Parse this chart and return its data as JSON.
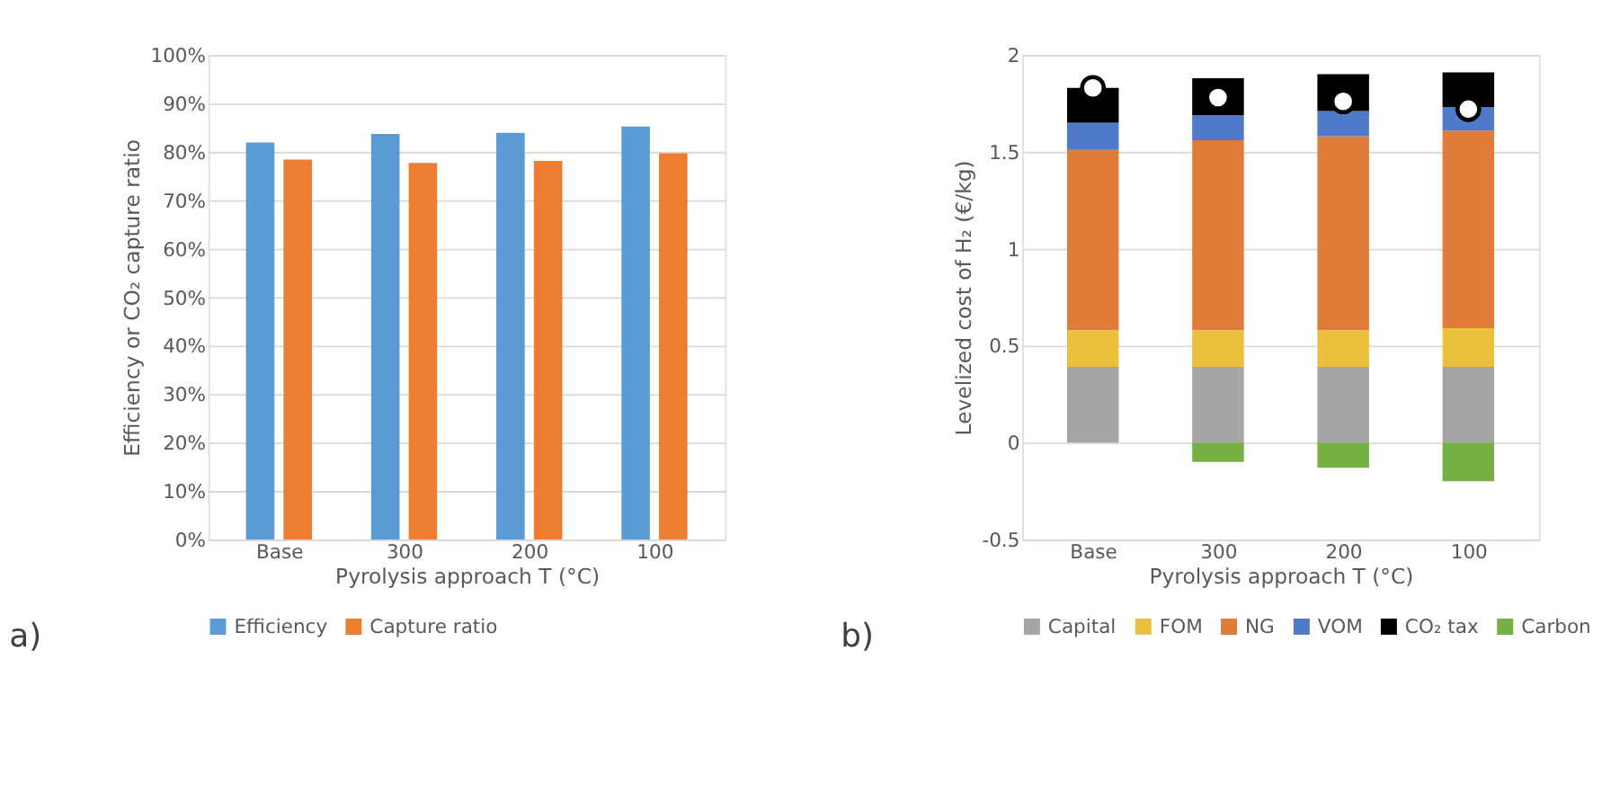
{
  "chart_data": [
    {
      "type": "bar",
      "ylabel": "Efficiency or CO₂ capture ratio",
      "xlabel": "Pyrolysis approach T (°C)",
      "categories": [
        "Base",
        "300",
        "200",
        "100"
      ],
      "series": [
        {
          "name": "Efficiency",
          "color": "#5b9bd5",
          "values": [
            81.9,
            83.7,
            83.9,
            85.2
          ]
        },
        {
          "name": "Capture ratio",
          "color": "#ed7d31",
          "values": [
            78.4,
            77.7,
            78.1,
            79.7
          ]
        }
      ],
      "ylim": [
        0,
        100
      ],
      "yticks": [
        {
          "value": 0,
          "label": "0%"
        },
        {
          "value": 10,
          "label": "10%"
        },
        {
          "value": 20,
          "label": "20%"
        },
        {
          "value": 30,
          "label": "30%"
        },
        {
          "value": 40,
          "label": "40%"
        },
        {
          "value": 50,
          "label": "50%"
        },
        {
          "value": 60,
          "label": "60%"
        },
        {
          "value": 70,
          "label": "70%"
        },
        {
          "value": 80,
          "label": "80%"
        },
        {
          "value": 90,
          "label": "90%"
        },
        {
          "value": 100,
          "label": "100%"
        }
      ],
      "grid": "y",
      "legend": "bottom",
      "annotations": [
        "a)"
      ]
    },
    {
      "type": "bar",
      "stacked": true,
      "ylabel": "Levelized cost of H₂ (€/kg)",
      "xlabel": "Pyrolysis approach T (°C)",
      "categories": [
        "Base",
        "300",
        "200",
        "100"
      ],
      "series": [
        {
          "name": "Capital",
          "color": "#a5a5a5",
          "values": [
            0.39,
            0.39,
            0.39,
            0.39
          ]
        },
        {
          "name": "FOM",
          "color": "#ebc03a",
          "values": [
            0.19,
            0.19,
            0.19,
            0.2
          ]
        },
        {
          "name": "NG",
          "color": "#e07b39",
          "values": [
            0.93,
            0.98,
            1.0,
            1.02
          ]
        },
        {
          "name": "VOM",
          "color": "#4f79c9",
          "values": [
            0.14,
            0.13,
            0.13,
            0.12
          ]
        },
        {
          "name": "CO₂ tax",
          "color": "#000000",
          "values": [
            0.18,
            0.19,
            0.19,
            0.18
          ]
        },
        {
          "name": "Carbon",
          "color": "#76b043",
          "values": [
            0,
            -0.1,
            -0.13,
            -0.2
          ]
        },
        {
          "type": "scatter",
          "color": "#ffffff",
          "marker": "circle",
          "x": [
            "Base",
            "300",
            "200",
            "100"
          ],
          "values": [
            1.83,
            1.78,
            1.76,
            1.72
          ]
        }
      ],
      "ylim": [
        -0.5,
        2
      ],
      "yticks": [
        -0.5,
        0,
        0.5,
        1,
        1.5,
        2
      ],
      "grid": "y",
      "legend": "bottom",
      "annotations": [
        "b)"
      ]
    }
  ]
}
